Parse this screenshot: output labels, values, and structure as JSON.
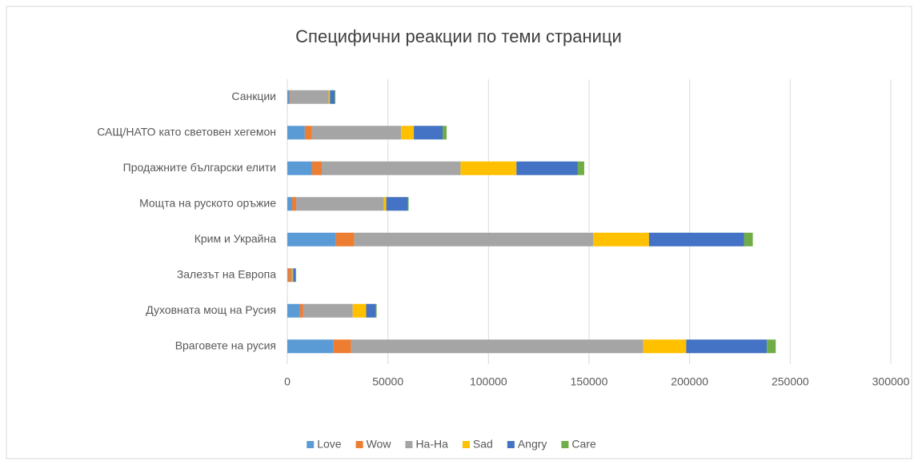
{
  "chart_data": {
    "type": "stacked_barh",
    "title": "Специфични реакции по теми страници",
    "categories": [
      "Санкции",
      "САЩ/НАТО като световен хегемон",
      "Продажните български елити",
      "Мощта на руското оръжие",
      "Крим и Украйна",
      "Залезът на Европа",
      "Духовната мощ на Русия",
      "Враговете на русия"
    ],
    "series": [
      {
        "name": "Love",
        "color": "#5b9bd5",
        "values": [
          1000,
          8700,
          12300,
          2400,
          24200,
          300,
          6300,
          23000
        ]
      },
      {
        "name": "Wow",
        "color": "#ed7d31",
        "values": [
          500,
          3500,
          4800,
          2000,
          9100,
          1500,
          1600,
          8700
        ]
      },
      {
        "name": "Ha-Ha",
        "color": "#a5a5a5",
        "values": [
          19000,
          44400,
          69000,
          43600,
          118700,
          800,
          24600,
          145200
        ]
      },
      {
        "name": "Sad",
        "color": "#ffc000",
        "values": [
          700,
          6300,
          27800,
          1200,
          27800,
          300,
          6700,
          21400
        ]
      },
      {
        "name": "Angry",
        "color": "#4472c4",
        "values": [
          2300,
          14300,
          30500,
          10700,
          47200,
          1200,
          4800,
          40100
        ]
      },
      {
        "name": "Care",
        "color": "#70ad47",
        "values": [
          400,
          2000,
          3200,
          400,
          4400,
          300,
          400,
          4400
        ]
      }
    ],
    "xlim": [
      0,
      300000
    ],
    "xticks": [
      0,
      50000,
      100000,
      150000,
      200000,
      250000,
      300000
    ],
    "grid": true,
    "legend": "bottom"
  }
}
